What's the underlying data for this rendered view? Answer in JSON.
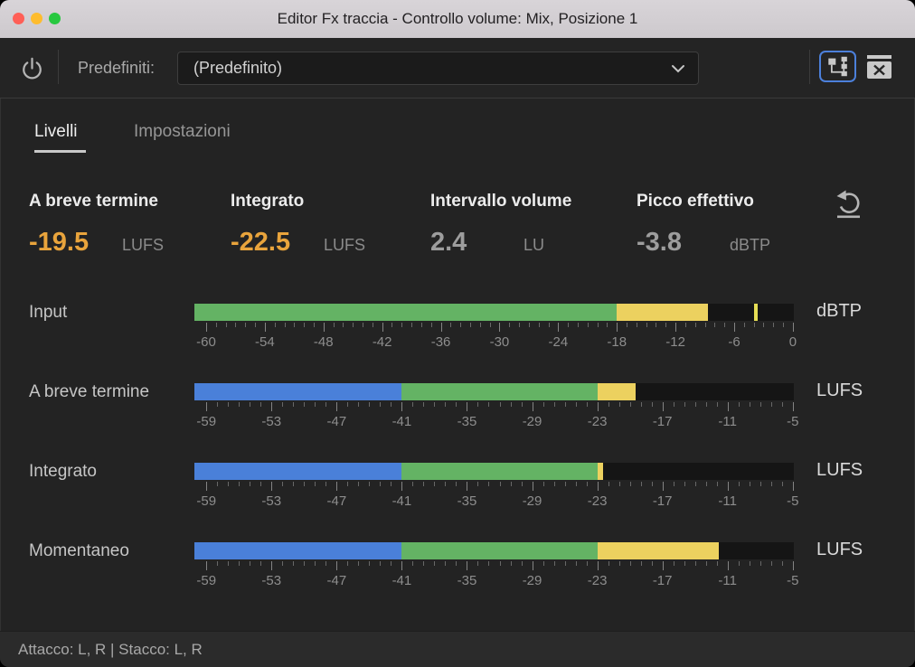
{
  "window": {
    "title": "Editor Fx traccia - Controllo volume: Mix, Posizione 1"
  },
  "toolbar": {
    "presets_label": "Predefiniti:",
    "preset_value": "(Predefinito)",
    "icons": {
      "power": "power-icon",
      "dropdown": "chevron-down-icon",
      "routing": "channel-routing-icon",
      "clear": "clear-icon"
    }
  },
  "tabs": [
    {
      "label": "Livelli",
      "active": true
    },
    {
      "label": "Impostazioni",
      "active": false
    }
  ],
  "stats": [
    {
      "label": "A breve termine",
      "value": "-19.5",
      "unit": "LUFS",
      "emphasis": "orange"
    },
    {
      "label": "Integrato",
      "value": "-22.5",
      "unit": "LUFS",
      "emphasis": "orange"
    },
    {
      "label": "Intervallo volume",
      "value": "2.4",
      "unit": "LU",
      "emphasis": "gray"
    },
    {
      "label": "Picco effettivo",
      "value": "-3.8",
      "unit": "dBTP",
      "emphasis": "gray"
    }
  ],
  "reset_icon": "reset-icon",
  "meters": [
    {
      "label": "Input",
      "unit": "dBTP",
      "scale_min": -61.2,
      "scale_max": 0.1,
      "tick_labels": [
        -60,
        -54,
        -48,
        -42,
        -36,
        -30,
        -24,
        -18,
        -12,
        -6,
        0
      ],
      "minor_from": -60,
      "minor_to": 0,
      "segments": [
        {
          "from": -61.2,
          "to": -18,
          "color": "green"
        },
        {
          "from": -18,
          "to": -8.7,
          "color": "yellow"
        }
      ],
      "peak_marker": -3.8
    },
    {
      "label": "A breve termine",
      "unit": "LUFS",
      "scale_min": -60.1,
      "scale_max": -4.9,
      "tick_labels": [
        -59,
        -53,
        -47,
        -41,
        -35,
        -29,
        -23,
        -17,
        -11,
        -5
      ],
      "minor_from": -59,
      "minor_to": -5,
      "segments": [
        {
          "from": -60.1,
          "to": -41,
          "color": "blue"
        },
        {
          "from": -41,
          "to": -23,
          "color": "green"
        },
        {
          "from": -23,
          "to": -19.5,
          "color": "yellow"
        }
      ],
      "peak_marker": null
    },
    {
      "label": "Integrato",
      "unit": "LUFS",
      "scale_min": -60.1,
      "scale_max": -4.9,
      "tick_labels": [
        -59,
        -53,
        -47,
        -41,
        -35,
        -29,
        -23,
        -17,
        -11,
        -5
      ],
      "minor_from": -59,
      "minor_to": -5,
      "segments": [
        {
          "from": -60.1,
          "to": -41,
          "color": "blue"
        },
        {
          "from": -41,
          "to": -23,
          "color": "green"
        },
        {
          "from": -23,
          "to": -22.5,
          "color": "yellow"
        }
      ],
      "peak_marker": null
    },
    {
      "label": "Momentaneo",
      "unit": "LUFS",
      "scale_min": -60.1,
      "scale_max": -4.9,
      "tick_labels": [
        -59,
        -53,
        -47,
        -41,
        -35,
        -29,
        -23,
        -17,
        -11,
        -5
      ],
      "minor_from": -59,
      "minor_to": -5,
      "segments": [
        {
          "from": -60.1,
          "to": -41,
          "color": "blue"
        },
        {
          "from": -41,
          "to": -23,
          "color": "green"
        },
        {
          "from": -23,
          "to": -11.8,
          "color": "yellow"
        }
      ],
      "peak_marker": null
    }
  ],
  "footer": {
    "text": "Attacco: L, R | Stacco: L, R"
  },
  "colors": {
    "meter_green": "#64b364",
    "meter_yellow": "#ecd15f",
    "meter_blue": "#4a80d9",
    "peak_marker": "#e5dd55",
    "accent_orange": "#e9a43c",
    "selection_blue": "#4c80db",
    "traffic_red": "#ff5f57",
    "traffic_yellow": "#febc2e",
    "traffic_green": "#28c840"
  }
}
